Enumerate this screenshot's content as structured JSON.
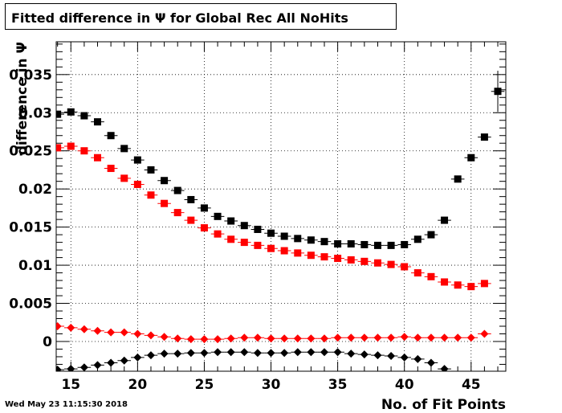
{
  "title": "Fitted difference in  Ψ  for Global Rec All NoHits",
  "timestamp": "Wed May 23 11:15:30 2018",
  "chart_data": {
    "type": "scatter",
    "xlabel": "No. of Fit Points",
    "ylabel": "difference in  Ψ",
    "xlim": [
      13.9,
      47.6
    ],
    "ylim": [
      -0.0039,
      0.0393
    ],
    "grid": true,
    "x_ticks": [
      15,
      20,
      25,
      30,
      35,
      40,
      45
    ],
    "x_tick_labels": [
      "15",
      "20",
      "25",
      "30",
      "35",
      "40",
      "45"
    ],
    "y_ticks": [
      0,
      0.005,
      0.01,
      0.015,
      0.02,
      0.025,
      0.03,
      0.035
    ],
    "y_tick_labels": [
      "0",
      "0.005",
      "0.01",
      "0.015",
      "0.02",
      "0.025",
      "0.03",
      "0.035"
    ],
    "series": [
      {
        "marker": "square",
        "color": "#000000",
        "x": [
          14,
          15,
          16,
          17,
          18,
          19,
          20,
          21,
          22,
          23,
          24,
          25,
          26,
          27,
          28,
          29,
          30,
          31,
          32,
          33,
          34,
          35,
          36,
          37,
          38,
          39,
          40,
          41,
          42,
          43,
          44,
          45,
          46,
          47
        ],
        "values": [
          0.0298,
          0.0301,
          0.0296,
          0.0288,
          0.027,
          0.0253,
          0.0238,
          0.0225,
          0.0211,
          0.0198,
          0.0186,
          0.0175,
          0.0164,
          0.0158,
          0.0152,
          0.0147,
          0.0142,
          0.0138,
          0.0135,
          0.0133,
          0.0131,
          0.0128,
          0.0128,
          0.0127,
          0.0126,
          0.0126,
          0.0127,
          0.0134,
          0.014,
          0.0159,
          0.0213,
          0.0241,
          0.0268,
          0.0328
        ],
        "yerr": [
          0,
          0,
          0,
          0,
          0,
          0,
          0,
          0,
          0,
          0,
          0,
          0,
          0,
          0,
          0,
          0,
          0,
          0,
          0,
          0,
          0,
          0,
          0,
          0,
          0,
          0,
          0,
          0,
          0,
          0,
          0,
          0,
          0,
          0.0027
        ]
      },
      {
        "marker": "square",
        "color": "#ff0000",
        "x": [
          14,
          15,
          16,
          17,
          18,
          19,
          20,
          21,
          22,
          23,
          24,
          25,
          26,
          27,
          28,
          29,
          30,
          31,
          32,
          33,
          34,
          35,
          36,
          37,
          38,
          39,
          40,
          41,
          42,
          43,
          44,
          45,
          46
        ],
        "values": [
          0.0254,
          0.0256,
          0.025,
          0.0241,
          0.0227,
          0.0214,
          0.0206,
          0.0192,
          0.0181,
          0.0169,
          0.0159,
          0.0149,
          0.0141,
          0.0134,
          0.013,
          0.0126,
          0.0122,
          0.0119,
          0.0116,
          0.0113,
          0.0111,
          0.0109,
          0.0107,
          0.0105,
          0.0103,
          0.0101,
          0.0098,
          0.009,
          0.0085,
          0.0078,
          0.0074,
          0.0072,
          0.0076
        ]
      },
      {
        "marker": "diamond",
        "color": "#ff0000",
        "x": [
          14,
          15,
          16,
          17,
          18,
          19,
          20,
          21,
          22,
          23,
          24,
          25,
          26,
          27,
          28,
          29,
          30,
          31,
          32,
          33,
          34,
          35,
          36,
          37,
          38,
          39,
          40,
          41,
          42,
          43,
          44,
          45,
          46
        ],
        "values": [
          0.002,
          0.0018,
          0.0016,
          0.0014,
          0.0012,
          0.0012,
          0.001,
          0.0008,
          0.0006,
          0.0004,
          0.0003,
          0.0003,
          0.0003,
          0.0004,
          0.0005,
          0.0005,
          0.0004,
          0.0004,
          0.0004,
          0.0004,
          0.0004,
          0.0005,
          0.0005,
          0.0005,
          0.0005,
          0.0005,
          0.0006,
          0.0005,
          0.0005,
          0.0005,
          0.0005,
          0.0005,
          0.001
        ]
      },
      {
        "marker": "diamond",
        "color": "#000000",
        "x": [
          14,
          15,
          16,
          17,
          18,
          19,
          20,
          21,
          22,
          23,
          24,
          25,
          26,
          27,
          28,
          29,
          30,
          31,
          32,
          33,
          34,
          35,
          36,
          37,
          38,
          39,
          40,
          41,
          42,
          43
        ],
        "values": [
          -0.0037,
          -0.0036,
          -0.0034,
          -0.0031,
          -0.0028,
          -0.0025,
          -0.0021,
          -0.0018,
          -0.0016,
          -0.0016,
          -0.0015,
          -0.0015,
          -0.0014,
          -0.0014,
          -0.0014,
          -0.0015,
          -0.0015,
          -0.0015,
          -0.0014,
          -0.0014,
          -0.0014,
          -0.0014,
          -0.0016,
          -0.0017,
          -0.0018,
          -0.0019,
          -0.0021,
          -0.0023,
          -0.0028,
          -0.0036
        ]
      }
    ]
  }
}
